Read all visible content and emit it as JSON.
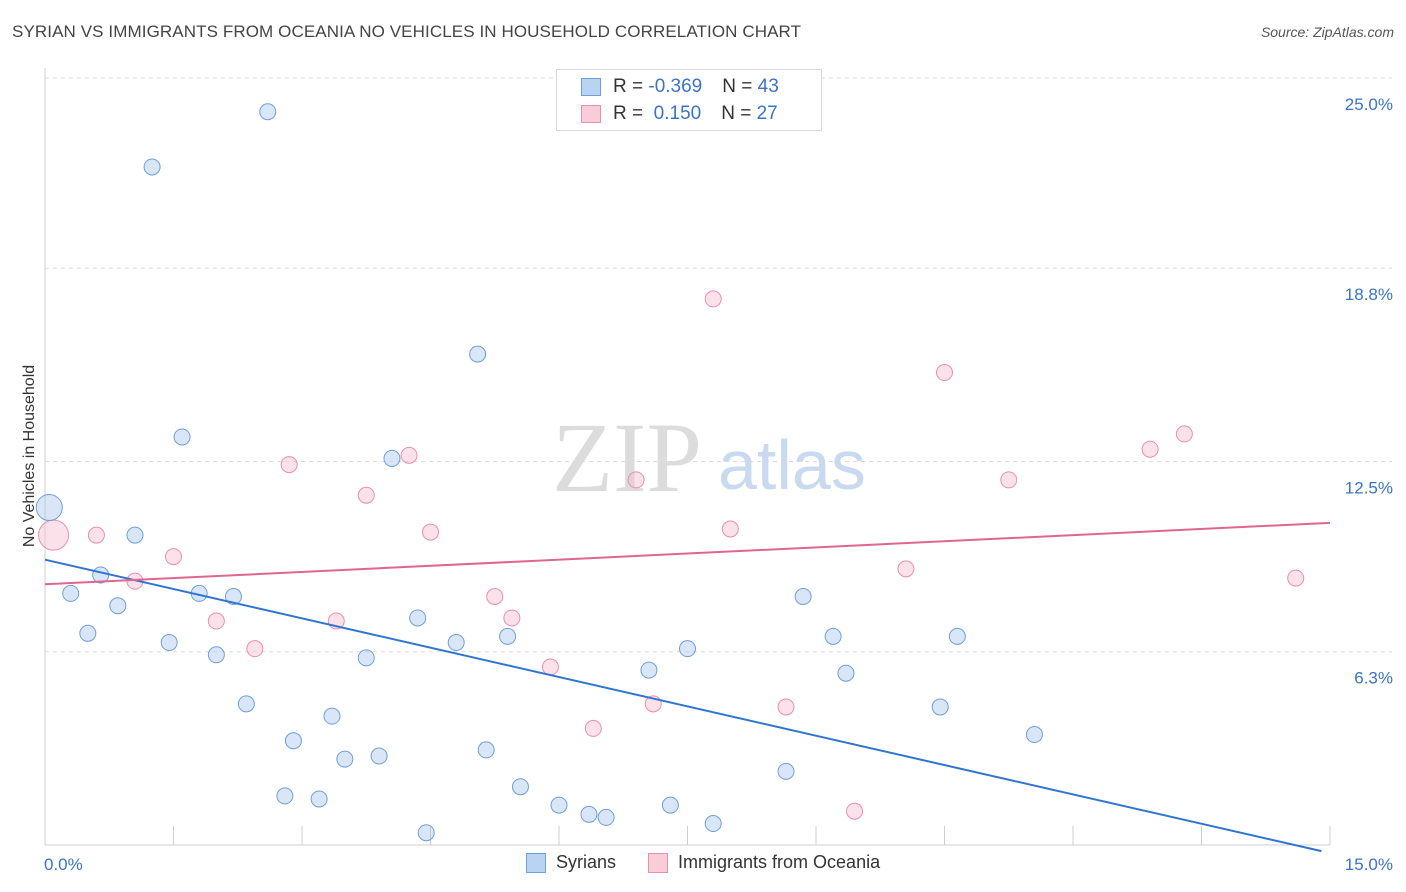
{
  "header": {
    "title": "SYRIAN VS IMMIGRANTS FROM OCEANIA NO VEHICLES IN HOUSEHOLD CORRELATION CHART",
    "source": "Source: ZipAtlas.com"
  },
  "watermark": {
    "zip": "ZIP",
    "atlas": "atlas"
  },
  "legend": {
    "rows": [
      {
        "r_label": "R = ",
        "r_value": "-0.369",
        "n_label": "N = ",
        "n_value": "43"
      },
      {
        "r_label": "R = ",
        "r_value": " 0.150",
        "n_label": "N = ",
        "n_value": "27"
      }
    ]
  },
  "chart_data": {
    "type": "scatter",
    "title": "SYRIAN VS IMMIGRANTS FROM OCEANIA NO VEHICLES IN HOUSEHOLD CORRELATION CHART",
    "xlabel": "",
    "ylabel": "No Vehicles in Household",
    "xlim": [
      0,
      15
    ],
    "ylim": [
      0,
      25
    ],
    "x_tick_labels": [
      "0.0%",
      "15.0%"
    ],
    "y_ticks": [
      6.3,
      12.5,
      18.8,
      25.0
    ],
    "y_tick_labels": [
      "6.3%",
      "12.5%",
      "18.8%",
      "25.0%"
    ],
    "grid": true,
    "legend_position": "top-center",
    "series": [
      {
        "name": "Syrians",
        "color": "#a9c8ef",
        "stroke": "#6f9fd8",
        "line_color": "#2f74d0",
        "trend": [
          [
            0,
            9.3
          ],
          [
            14.9,
            -0.2
          ]
        ],
        "points": [
          [
            0.05,
            11.0,
            26
          ],
          [
            1.25,
            22.1,
            16
          ],
          [
            2.6,
            23.9,
            16
          ],
          [
            0.3,
            8.2,
            16
          ],
          [
            0.5,
            6.9,
            16
          ],
          [
            0.65,
            8.8,
            16
          ],
          [
            0.85,
            7.8,
            16
          ],
          [
            1.05,
            10.1,
            16
          ],
          [
            1.45,
            6.6,
            16
          ],
          [
            1.6,
            13.3,
            16
          ],
          [
            1.8,
            8.2,
            16
          ],
          [
            2.0,
            6.2,
            16
          ],
          [
            2.2,
            8.1,
            16
          ],
          [
            2.35,
            4.6,
            16
          ],
          [
            2.8,
            1.6,
            16
          ],
          [
            2.9,
            3.4,
            16
          ],
          [
            3.2,
            1.5,
            16
          ],
          [
            3.35,
            4.2,
            16
          ],
          [
            3.5,
            2.8,
            16
          ],
          [
            3.75,
            6.1,
            16
          ],
          [
            3.9,
            2.9,
            16
          ],
          [
            4.05,
            12.6,
            16
          ],
          [
            4.35,
            7.4,
            16
          ],
          [
            4.45,
            0.4,
            16
          ],
          [
            4.8,
            6.6,
            16
          ],
          [
            5.05,
            16.0,
            16
          ],
          [
            5.15,
            3.1,
            16
          ],
          [
            5.4,
            6.8,
            16
          ],
          [
            5.55,
            1.9,
            16
          ],
          [
            6.0,
            1.3,
            16
          ],
          [
            6.35,
            1.0,
            16
          ],
          [
            6.55,
            0.9,
            16
          ],
          [
            7.05,
            5.7,
            16
          ],
          [
            7.3,
            1.3,
            16
          ],
          [
            7.5,
            6.4,
            16
          ],
          [
            7.8,
            0.7,
            16
          ],
          [
            8.65,
            2.4,
            16
          ],
          [
            8.85,
            8.1,
            16
          ],
          [
            9.2,
            6.8,
            16
          ],
          [
            9.35,
            5.6,
            16
          ],
          [
            10.45,
            4.5,
            16
          ],
          [
            10.65,
            6.8,
            16
          ],
          [
            11.55,
            3.6,
            16
          ]
        ]
      },
      {
        "name": "Immigrants from Oceania",
        "color": "#f7bfd0",
        "stroke": "#e88fae",
        "line_color": "#e0668f",
        "trend": [
          [
            0,
            8.5
          ],
          [
            15,
            10.5
          ]
        ],
        "points": [
          [
            0.1,
            10.1,
            30
          ],
          [
            0.6,
            10.1,
            16
          ],
          [
            1.05,
            8.6,
            16
          ],
          [
            1.5,
            9.4,
            16
          ],
          [
            2.0,
            7.3,
            16
          ],
          [
            2.45,
            6.4,
            16
          ],
          [
            2.85,
            12.4,
            16
          ],
          [
            3.4,
            7.3,
            16
          ],
          [
            3.75,
            11.4,
            16
          ],
          [
            4.25,
            12.7,
            16
          ],
          [
            4.5,
            10.2,
            16
          ],
          [
            5.25,
            8.1,
            16
          ],
          [
            5.45,
            7.4,
            16
          ],
          [
            5.9,
            5.8,
            16
          ],
          [
            6.4,
            3.8,
            16
          ],
          [
            6.9,
            11.9,
            16
          ],
          [
            7.1,
            4.6,
            16
          ],
          [
            7.8,
            17.8,
            16
          ],
          [
            8.0,
            10.3,
            16
          ],
          [
            8.65,
            4.5,
            16
          ],
          [
            9.45,
            1.1,
            16
          ],
          [
            10.05,
            9.0,
            16
          ],
          [
            10.5,
            15.4,
            16
          ],
          [
            11.25,
            11.9,
            16
          ],
          [
            12.9,
            12.9,
            16
          ],
          [
            13.3,
            13.4,
            16
          ],
          [
            14.6,
            8.7,
            16
          ]
        ]
      }
    ]
  }
}
